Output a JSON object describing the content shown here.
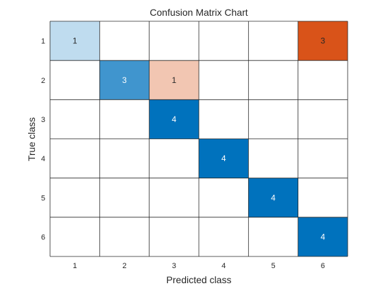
{
  "chart_data": {
    "type": "heatmap",
    "title": "Confusion Matrix Chart",
    "xlabel": "Predicted class",
    "ylabel": "True class",
    "classes": [
      "1",
      "2",
      "3",
      "4",
      "5",
      "6"
    ],
    "matrix": [
      [
        1,
        0,
        0,
        0,
        0,
        3
      ],
      [
        0,
        3,
        1,
        0,
        0,
        0
      ],
      [
        0,
        0,
        4,
        0,
        0,
        0
      ],
      [
        0,
        0,
        0,
        4,
        0,
        0
      ],
      [
        0,
        0,
        0,
        0,
        4,
        0
      ],
      [
        0,
        0,
        0,
        0,
        0,
        4
      ]
    ],
    "colors": {
      "diagonal_max": "#0072bd",
      "offdiagonal_max": "#d95319",
      "grid": "#262626",
      "text": "#262626"
    }
  }
}
